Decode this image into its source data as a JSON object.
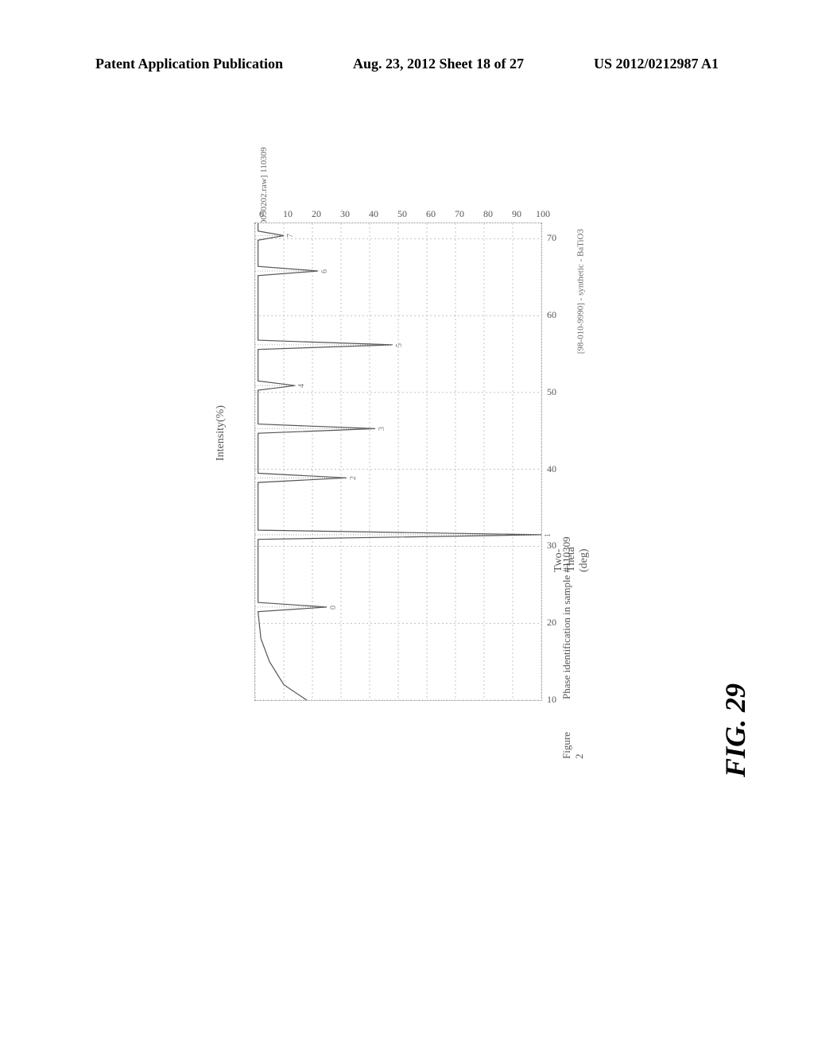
{
  "header": {
    "left": "Patent Application Publication",
    "center": "Aug. 23, 2012  Sheet 18 of 27",
    "right": "US 2012/0212987 A1"
  },
  "figure_label_big": "FIG. 29",
  "figure_label_small": "Figure 2",
  "figure_caption": "Phase identification in sample #110309",
  "chart": {
    "type": "xrd-line",
    "raw_label": "[D050202.raw] 110309",
    "legend_label": "[98-010-9990] - synthetic - BaTiO3",
    "x_label": "Two-Theta (deg)",
    "y_label": "Intensity(%)",
    "xlim": [
      10,
      72
    ],
    "ylim": [
      0,
      100
    ],
    "xticks": [
      10,
      20,
      30,
      40,
      50,
      60,
      70
    ],
    "yticks": [
      0,
      10,
      20,
      30,
      40,
      50,
      60,
      70,
      80,
      90,
      100
    ],
    "background_color": "#ffffff",
    "grid_color": "#888888",
    "grid_style": "dotted",
    "line_color": "#555555",
    "line_width": 1.2,
    "label_fontsize": 14,
    "tick_fontsize": 12,
    "peaks": [
      {
        "two_theta": 22.1,
        "intensity": 25,
        "label": "0"
      },
      {
        "two_theta": 31.5,
        "intensity": 100,
        "label": "1"
      },
      {
        "two_theta": 38.9,
        "intensity": 32,
        "label": "2"
      },
      {
        "two_theta": 45.3,
        "intensity": 42,
        "label": "3"
      },
      {
        "two_theta": 50.9,
        "intensity": 14,
        "label": "4"
      },
      {
        "two_theta": 56.2,
        "intensity": 48,
        "label": "5"
      },
      {
        "two_theta": 65.8,
        "intensity": 22,
        "label": "6"
      },
      {
        "two_theta": 70.4,
        "intensity": 10,
        "label": "7"
      }
    ],
    "baseline_tail": [
      {
        "two_theta": 10,
        "intensity": 18
      },
      {
        "two_theta": 12,
        "intensity": 10
      },
      {
        "two_theta": 15,
        "intensity": 5
      },
      {
        "two_theta": 18,
        "intensity": 2
      }
    ],
    "peak_half_width": 0.6
  }
}
